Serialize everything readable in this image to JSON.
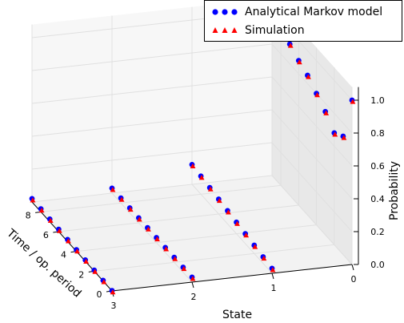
{
  "chart_data": {
    "type": "scatter",
    "projection": "3d",
    "xlabel": "State",
    "ylabel": "Time / op. period",
    "zlabel": "Probability",
    "x_ticks": [
      "3",
      "2",
      "1",
      "0"
    ],
    "y_ticks": [
      "0",
      "2",
      "4",
      "6",
      "8"
    ],
    "z_ticks": [
      "0.0",
      "0.2",
      "0.4",
      "0.6",
      "0.8",
      "1.0"
    ],
    "xlim": [
      0,
      3
    ],
    "ylim": [
      0,
      9
    ],
    "zlim": [
      0,
      1
    ],
    "grid": true,
    "legend_position": "top-right",
    "colors": {
      "markov": "#0000ff",
      "simulation": "#ff0000"
    },
    "series": [
      {
        "name": "Analytical Markov model",
        "marker": "circle",
        "points": {
          "3": [
            0.002,
            0.004,
            0.006,
            0.008,
            0.01,
            0.012,
            0.014,
            0.016,
            0.018,
            0.02
          ],
          "2": [
            0.03,
            0.03,
            0.03,
            0.03,
            0.03,
            0.03,
            0.03,
            0.03,
            0.03,
            0.03
          ],
          "1": [
            0.03,
            0.04,
            0.05,
            0.06,
            0.07,
            0.08,
            0.09,
            0.1,
            0.11,
            0.12
          ],
          "0": [
            1.0,
            0.72,
            0.68,
            0.75,
            0.8,
            0.85,
            0.88,
            0.92,
            0.96,
            1.0
          ]
        }
      },
      {
        "name": "Simulation",
        "marker": "triangle",
        "points": {
          "3": [
            0.002,
            0.004,
            0.006,
            0.008,
            0.01,
            0.012,
            0.014,
            0.016,
            0.018,
            0.02
          ],
          "2": [
            0.03,
            0.03,
            0.03,
            0.03,
            0.03,
            0.03,
            0.03,
            0.03,
            0.03,
            0.03
          ],
          "1": [
            0.03,
            0.04,
            0.05,
            0.06,
            0.07,
            0.08,
            0.09,
            0.1,
            0.11,
            0.12
          ],
          "0": [
            1.0,
            0.72,
            0.68,
            0.75,
            0.8,
            0.85,
            0.88,
            0.92,
            0.96,
            1.0
          ]
        }
      }
    ]
  }
}
